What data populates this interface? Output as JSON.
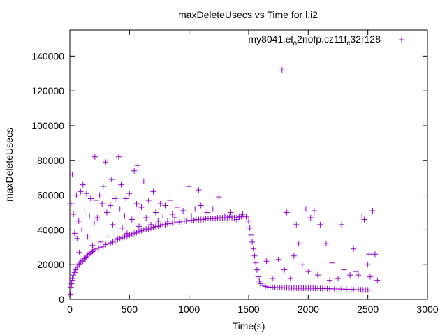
{
  "chart_data": {
    "type": "scatter",
    "title": "maxDeleteUsecs vs Time for l.i2",
    "xlabel": "Time(s)",
    "ylabel": "maxDeleteUsecs",
    "xlim": [
      0,
      3000
    ],
    "ylim": [
      0,
      155000
    ],
    "xticks": [
      0,
      500,
      1000,
      1500,
      2000,
      2500,
      3000
    ],
    "yticks": [
      0,
      20000,
      40000,
      60000,
      80000,
      100000,
      120000,
      140000
    ],
    "grid": false,
    "legend_position": "top-right",
    "marker": "+",
    "series": [
      {
        "name": "my8041_rel_o2nofp.cz11f_c32r128",
        "legend": {
          "parts": [
            "my8041",
            "r",
            "el",
            "o",
            "2nofp.cz11f",
            "c",
            "32r128"
          ]
        },
        "color": "#9400d3",
        "points": [
          [
            5,
            3000
          ],
          [
            10,
            7000
          ],
          [
            15,
            9000
          ],
          [
            20,
            12000
          ],
          [
            25,
            11000
          ],
          [
            30,
            14000
          ],
          [
            40,
            15500
          ],
          [
            50,
            17000
          ],
          [
            60,
            18500
          ],
          [
            70,
            20000
          ],
          [
            80,
            20500
          ],
          [
            90,
            21500
          ],
          [
            100,
            22500
          ],
          [
            110,
            22000
          ],
          [
            120,
            23500
          ],
          [
            130,
            24000
          ],
          [
            140,
            24500
          ],
          [
            150,
            25500
          ],
          [
            160,
            26000
          ],
          [
            170,
            26500
          ],
          [
            180,
            27000
          ],
          [
            190,
            27500
          ],
          [
            200,
            28500
          ],
          [
            220,
            29000
          ],
          [
            240,
            29500
          ],
          [
            260,
            30000
          ],
          [
            280,
            30500
          ],
          [
            300,
            31500
          ],
          [
            320,
            32000
          ],
          [
            340,
            32500
          ],
          [
            360,
            33000
          ],
          [
            380,
            33500
          ],
          [
            400,
            34500
          ],
          [
            420,
            35000
          ],
          [
            440,
            35500
          ],
          [
            460,
            36000
          ],
          [
            480,
            36500
          ],
          [
            500,
            37000
          ],
          [
            520,
            37500
          ],
          [
            540,
            38000
          ],
          [
            560,
            38500
          ],
          [
            580,
            39000
          ],
          [
            600,
            39500
          ],
          [
            620,
            40000
          ],
          [
            640,
            40500
          ],
          [
            660,
            40500
          ],
          [
            680,
            41000
          ],
          [
            700,
            41500
          ],
          [
            720,
            42000
          ],
          [
            740,
            42000
          ],
          [
            760,
            42500
          ],
          [
            780,
            43000
          ],
          [
            800,
            43000
          ],
          [
            820,
            43500
          ],
          [
            840,
            43500
          ],
          [
            860,
            44000
          ],
          [
            880,
            44000
          ],
          [
            900,
            44500
          ],
          [
            920,
            44500
          ],
          [
            940,
            45000
          ],
          [
            960,
            45000
          ],
          [
            980,
            45000
          ],
          [
            1000,
            45500
          ],
          [
            1020,
            45500
          ],
          [
            1040,
            45500
          ],
          [
            1060,
            46000
          ],
          [
            1080,
            46000
          ],
          [
            1100,
            46000
          ],
          [
            1120,
            46000
          ],
          [
            1140,
            46500
          ],
          [
            1160,
            46500
          ],
          [
            1180,
            46500
          ],
          [
            1200,
            46500
          ],
          [
            1220,
            46500
          ],
          [
            1240,
            47000
          ],
          [
            1260,
            47000
          ],
          [
            1280,
            47000
          ],
          [
            1300,
            47000
          ],
          [
            1320,
            47000
          ],
          [
            1340,
            47500
          ],
          [
            1360,
            47000
          ],
          [
            1380,
            47000
          ],
          [
            1400,
            47000
          ],
          [
            1420,
            47500
          ],
          [
            1440,
            47500
          ],
          [
            1460,
            48000
          ],
          [
            1480,
            47500
          ],
          [
            1500,
            45000
          ],
          [
            1510,
            41000
          ],
          [
            1520,
            37000
          ],
          [
            1530,
            33000
          ],
          [
            1540,
            29000
          ],
          [
            1550,
            25000
          ],
          [
            1560,
            21000
          ],
          [
            1570,
            17000
          ],
          [
            1580,
            13000
          ],
          [
            1590,
            10500
          ],
          [
            1600,
            9000
          ],
          [
            1620,
            8000
          ],
          [
            1640,
            7500
          ],
          [
            1660,
            7200
          ],
          [
            1680,
            7000
          ],
          [
            1700,
            7000
          ],
          [
            1720,
            6900
          ],
          [
            1740,
            6800
          ],
          [
            1760,
            6800
          ],
          [
            1780,
            6800
          ],
          [
            1800,
            6700
          ],
          [
            1820,
            6700
          ],
          [
            1840,
            6600
          ],
          [
            1860,
            6600
          ],
          [
            1880,
            6600
          ],
          [
            1900,
            6500
          ],
          [
            1920,
            6500
          ],
          [
            1940,
            6500
          ],
          [
            1960,
            6500
          ],
          [
            1980,
            6500
          ],
          [
            2000,
            6400
          ],
          [
            2020,
            6400
          ],
          [
            2040,
            6400
          ],
          [
            2060,
            6300
          ],
          [
            2080,
            6300
          ],
          [
            2100,
            6300
          ],
          [
            2120,
            6200
          ],
          [
            2140,
            6200
          ],
          [
            2160,
            6200
          ],
          [
            2180,
            6100
          ],
          [
            2200,
            6100
          ],
          [
            2220,
            6000
          ],
          [
            2240,
            6000
          ],
          [
            2260,
            6000
          ],
          [
            2280,
            5900
          ],
          [
            2300,
            5900
          ],
          [
            2320,
            5800
          ],
          [
            2340,
            5800
          ],
          [
            2360,
            5700
          ],
          [
            2380,
            5700
          ],
          [
            2400,
            5600
          ],
          [
            2420,
            5600
          ],
          [
            2440,
            5500
          ],
          [
            2460,
            5500
          ],
          [
            2480,
            5400
          ],
          [
            2500,
            5400
          ],
          [
            2510,
            5300
          ],
          [
            10,
            55000
          ],
          [
            20,
            72000
          ],
          [
            30,
            49000
          ],
          [
            40,
            38000
          ],
          [
            55,
            60000
          ],
          [
            60,
            35000
          ],
          [
            75,
            45000
          ],
          [
            80,
            27000
          ],
          [
            90,
            62000
          ],
          [
            100,
            40000
          ],
          [
            110,
            66000
          ],
          [
            125,
            52000
          ],
          [
            140,
            61000
          ],
          [
            150,
            36000
          ],
          [
            165,
            48000
          ],
          [
            175,
            58000
          ],
          [
            190,
            31000
          ],
          [
            205,
            44000
          ],
          [
            210,
            82000
          ],
          [
            220,
            57000
          ],
          [
            230,
            47000
          ],
          [
            250,
            60000
          ],
          [
            260,
            33000
          ],
          [
            270,
            55000
          ],
          [
            280,
            65000
          ],
          [
            300,
            79000
          ],
          [
            310,
            50000
          ],
          [
            320,
            36000
          ],
          [
            340,
            54000
          ],
          [
            350,
            69000
          ],
          [
            360,
            43000
          ],
          [
            380,
            58000
          ],
          [
            400,
            35000
          ],
          [
            410,
            82000
          ],
          [
            420,
            52000
          ],
          [
            430,
            66000
          ],
          [
            440,
            41000
          ],
          [
            460,
            48000
          ],
          [
            470,
            58000
          ],
          [
            480,
            38000
          ],
          [
            500,
            61000
          ],
          [
            520,
            46000
          ],
          [
            540,
            74000
          ],
          [
            560,
            55000
          ],
          [
            570,
            77000
          ],
          [
            580,
            42000
          ],
          [
            600,
            53000
          ],
          [
            620,
            68000
          ],
          [
            640,
            47000
          ],
          [
            660,
            57000
          ],
          [
            680,
            43000
          ],
          [
            700,
            62000
          ],
          [
            720,
            50000
          ],
          [
            740,
            45000
          ],
          [
            760,
            55000
          ],
          [
            780,
            48000
          ],
          [
            800,
            54000
          ],
          [
            820,
            45000
          ],
          [
            840,
            57000
          ],
          [
            860,
            49000
          ],
          [
            880,
            47000
          ],
          [
            900,
            53000
          ],
          [
            950,
            51000
          ],
          [
            1000,
            65000
          ],
          [
            1020,
            48000
          ],
          [
            1050,
            52000
          ],
          [
            1080,
            63000
          ],
          [
            1100,
            54000
          ],
          [
            1150,
            50000
          ],
          [
            1200,
            52000
          ],
          [
            1250,
            59000
          ],
          [
            1300,
            48000
          ],
          [
            1350,
            50000
          ],
          [
            1400,
            46000
          ],
          [
            1450,
            49000
          ],
          [
            1650,
            22000
          ],
          [
            1700,
            12000
          ],
          [
            1750,
            23000
          ],
          [
            1780,
            132000
          ],
          [
            1800,
            17000
          ],
          [
            1820,
            50000
          ],
          [
            1850,
            12000
          ],
          [
            1880,
            25000
          ],
          [
            1900,
            43000
          ],
          [
            1920,
            32000
          ],
          [
            1950,
            20000
          ],
          [
            1980,
            52000
          ],
          [
            2000,
            16000
          ],
          [
            2020,
            47000
          ],
          [
            2050,
            51000
          ],
          [
            2080,
            14000
          ],
          [
            2100,
            43000
          ],
          [
            2150,
            32000
          ],
          [
            2180,
            11000
          ],
          [
            2200,
            21000
          ],
          [
            2250,
            12000
          ],
          [
            2280,
            43000
          ],
          [
            2300,
            17000
          ],
          [
            2350,
            14000
          ],
          [
            2380,
            29000
          ],
          [
            2400,
            16000
          ],
          [
            2420,
            14000
          ],
          [
            2450,
            48000
          ],
          [
            2470,
            46000
          ],
          [
            2500,
            20000
          ],
          [
            2510,
            26000
          ],
          [
            2520,
            13000
          ],
          [
            2540,
            51000
          ],
          [
            2560,
            26000
          ],
          [
            2580,
            11000
          ]
        ]
      }
    ]
  }
}
